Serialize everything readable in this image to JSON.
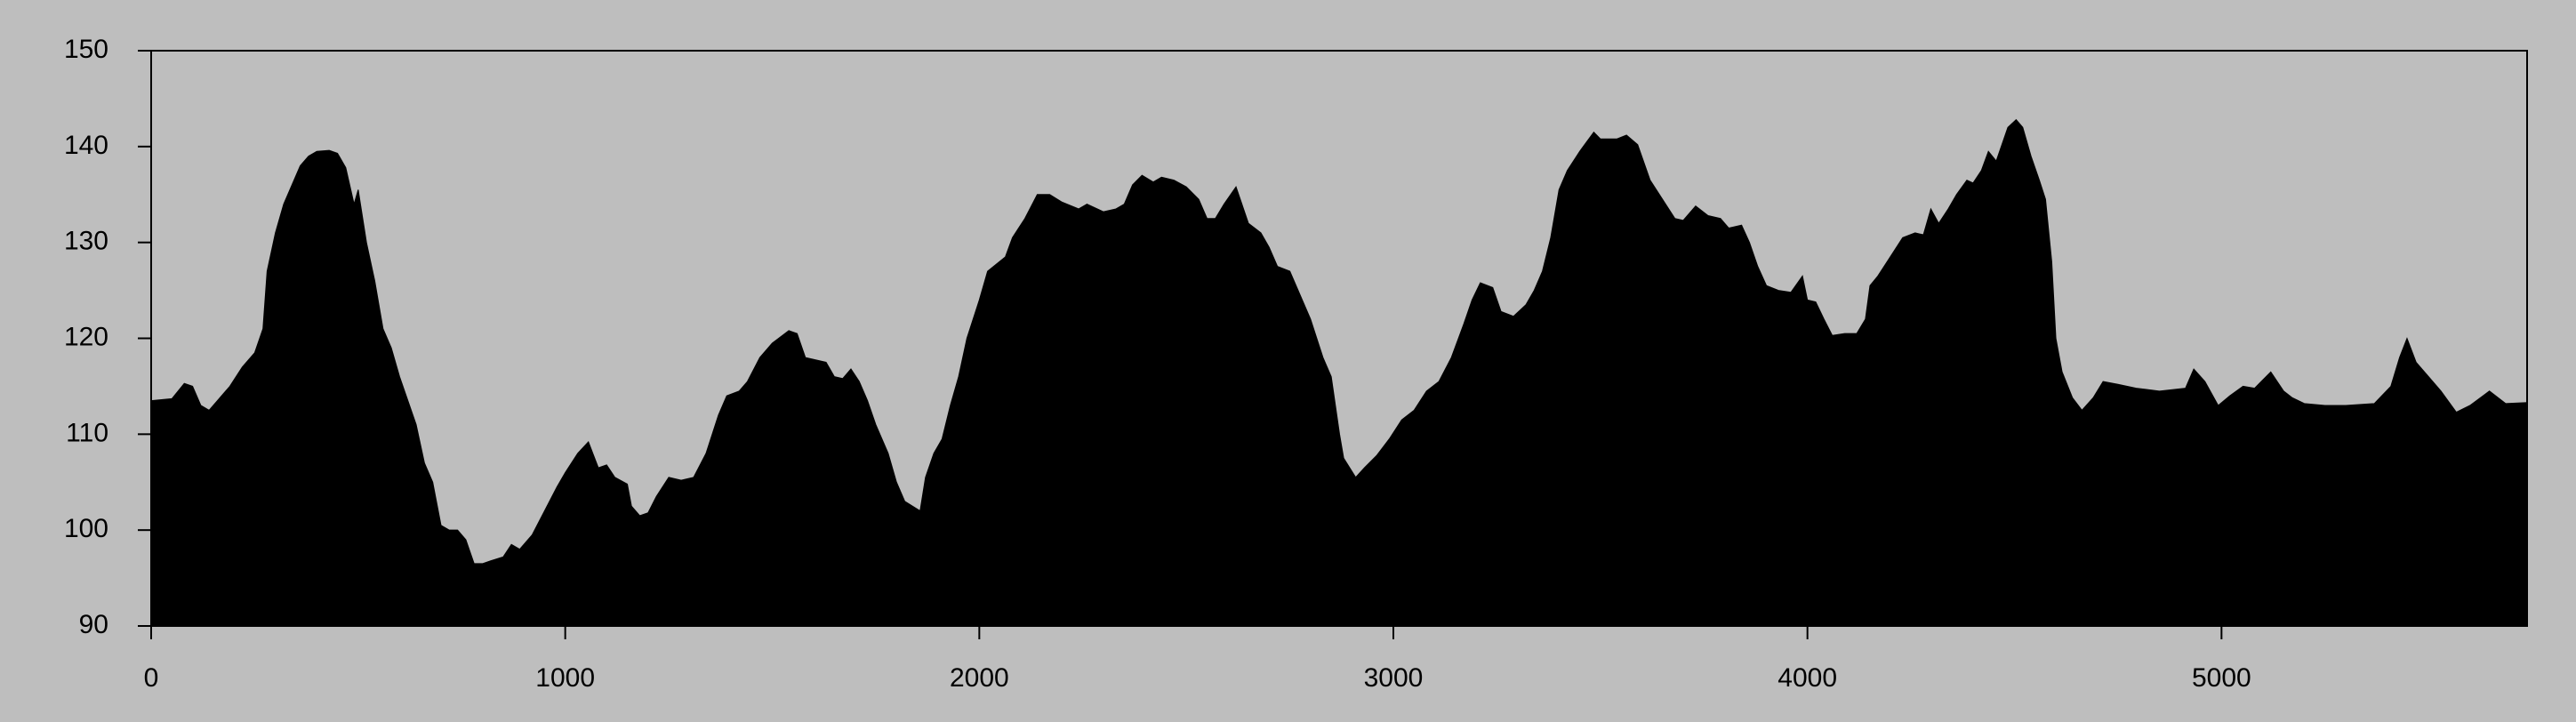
{
  "chart_data": {
    "type": "area",
    "color": "#000000",
    "background": "#bebebe",
    "x": [
      0,
      50,
      80,
      100,
      120,
      140,
      160,
      190,
      220,
      250,
      270,
      280,
      300,
      320,
      340,
      360,
      380,
      400,
      430,
      450,
      470,
      490,
      500,
      520,
      540,
      560,
      580,
      600,
      620,
      640,
      660,
      680,
      700,
      720,
      740,
      760,
      780,
      800,
      820,
      850,
      870,
      890,
      920,
      950,
      980,
      1000,
      1030,
      1056,
      1080,
      1100,
      1120,
      1150,
      1160,
      1180,
      1200,
      1220,
      1250,
      1280,
      1310,
      1340,
      1370,
      1390,
      1420,
      1440,
      1470,
      1500,
      1540,
      1560,
      1580,
      1600,
      1630,
      1650,
      1670,
      1690,
      1710,
      1730,
      1750,
      1780,
      1800,
      1820,
      1857,
      1870,
      1890,
      1910,
      1930,
      1950,
      1970,
      2000,
      2020,
      2063,
      2080,
      2110,
      2140,
      2170,
      2200,
      2240,
      2260,
      2300,
      2330,
      2350,
      2370,
      2393,
      2420,
      2440,
      2470,
      2500,
      2530,
      2550,
      2570,
      2591,
      2620,
      2650,
      2680,
      2700,
      2720,
      2750,
      2770,
      2800,
      2830,
      2850,
      2870,
      2880,
      2909,
      2930,
      2960,
      2990,
      3020,
      3050,
      3080,
      3110,
      3140,
      3170,
      3190,
      3210,
      3240,
      3260,
      3290,
      3320,
      3340,
      3360,
      3380,
      3400,
      3420,
      3450,
      3484,
      3500,
      3540,
      3563,
      3590,
      3620,
      3650,
      3680,
      3700,
      3730,
      3760,
      3790,
      3810,
      3841,
      3860,
      3880,
      3901,
      3930,
      3960,
      3988,
      4000,
      4020,
      4040,
      4060,
      4090,
      4119,
      4140,
      4151,
      4170,
      4200,
      4230,
      4260,
      4280,
      4298,
      4317,
      4340,
      4360,
      4385,
      4400,
      4420,
      4437,
      4456,
      4484,
      4504,
      4520,
      4540,
      4560,
      4575,
      4590,
      4600,
      4615,
      4640,
      4663,
      4690,
      4714,
      4750,
      4794,
      4850,
      4913,
      4933,
      4960,
      4992,
      5020,
      5052,
      5080,
      5119,
      5150,
      5171,
      5200,
      5250,
      5300,
      5369,
      5409,
      5430,
      5448,
      5470,
      5500,
      5530,
      5567,
      5600,
      5647,
      5686,
      5738
    ],
    "values": [
      113.5,
      113.7,
      115.3,
      115,
      113,
      112.5,
      113.5,
      115,
      117,
      118.5,
      121,
      127,
      131,
      134,
      136,
      138,
      139,
      139.5,
      139.6,
      139.3,
      137.8,
      134,
      135.5,
      130,
      126,
      121,
      119,
      116,
      113.5,
      111,
      107,
      105,
      100.5,
      100,
      100,
      99,
      96.5,
      96.5,
      96.8,
      97.2,
      98.5,
      98,
      99.5,
      102,
      104.5,
      106,
      108,
      109.2,
      106.5,
      106.8,
      105.5,
      104.8,
      102.5,
      101.5,
      101.8,
      103.5,
      105.5,
      105.2,
      105.5,
      108,
      112,
      114,
      114.5,
      115.5,
      118,
      119.5,
      120.8,
      120.5,
      118,
      117.8,
      117.5,
      116,
      115.8,
      116.8,
      115.5,
      113.5,
      111,
      108,
      105,
      103,
      102,
      105.5,
      108,
      109.5,
      113,
      116,
      120,
      124,
      127,
      128.5,
      130.5,
      132.5,
      135,
      135,
      134.2,
      133.5,
      134,
      133.2,
      133.5,
      134,
      136,
      137,
      136.3,
      136.8,
      136.5,
      135.8,
      134.5,
      132.5,
      132.5,
      134,
      135.8,
      132,
      131,
      129.5,
      127.5,
      127,
      125,
      122,
      118,
      116,
      110,
      107.5,
      105.5,
      106.5,
      107.8,
      109.5,
      111.5,
      112.5,
      114.5,
      115.5,
      118,
      121.5,
      124,
      125.8,
      125.3,
      122.8,
      122.3,
      123.5,
      125,
      127,
      130.5,
      135.5,
      137.5,
      139.5,
      141.5,
      140.8,
      140.8,
      141.2,
      140.2,
      136.5,
      134.5,
      132.5,
      132.3,
      133.8,
      132.8,
      132.5,
      131.5,
      131.8,
      130,
      127.5,
      125.5,
      125,
      124.8,
      126.5,
      124,
      123.8,
      122,
      120.3,
      120.5,
      120.5,
      122,
      125.5,
      126.5,
      128.5,
      130.5,
      131,
      130.8,
      133.5,
      132,
      133.5,
      135,
      136.5,
      136.2,
      137.5,
      139.5,
      138.5,
      142,
      142.8,
      142,
      139,
      136.5,
      134.5,
      128,
      120,
      116.5,
      113.8,
      112.5,
      113.8,
      115.5,
      115.2,
      114.8,
      114.5,
      114.8,
      116.8,
      115.5,
      113,
      114,
      115,
      114.8,
      116.5,
      114.5,
      113.8,
      113.2,
      113,
      113,
      113.2,
      115,
      118,
      120,
      117.5,
      116,
      114.5,
      112.3,
      113,
      114.5,
      113.2,
      113.3
    ],
    "xlim": [
      0,
      5738
    ],
    "ylim": [
      90,
      150
    ],
    "xticks": [
      0,
      1000,
      2000,
      3000,
      4000,
      5000
    ],
    "yticks": [
      90,
      100,
      110,
      120,
      130,
      140,
      150
    ]
  }
}
